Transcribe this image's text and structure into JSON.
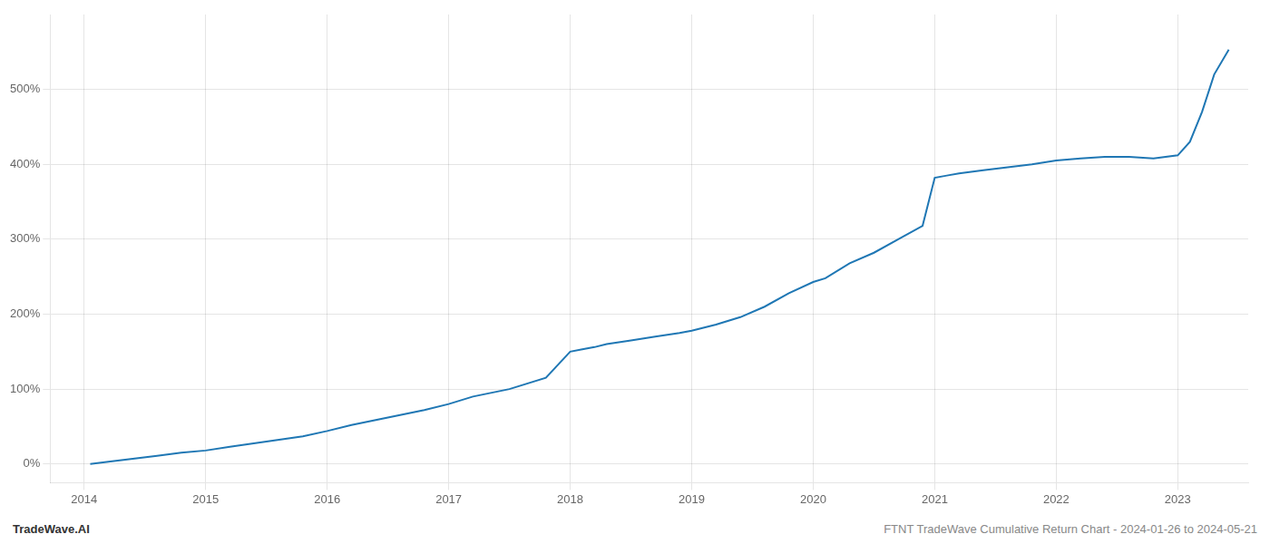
{
  "chart_data": {
    "type": "line",
    "x": [
      2014.05,
      2014.2,
      2014.4,
      2014.6,
      2014.8,
      2015.0,
      2015.2,
      2015.5,
      2015.8,
      2016.0,
      2016.2,
      2016.5,
      2016.8,
      2017.0,
      2017.2,
      2017.5,
      2017.8,
      2018.0,
      2018.1,
      2018.2,
      2018.3,
      2018.5,
      2018.7,
      2018.9,
      2019.0,
      2019.2,
      2019.4,
      2019.6,
      2019.8,
      2020.0,
      2020.1,
      2020.3,
      2020.5,
      2020.7,
      2020.9,
      2021.0,
      2021.1,
      2021.2,
      2021.4,
      2021.6,
      2021.8,
      2022.0,
      2022.2,
      2022.4,
      2022.6,
      2022.8,
      2023.0,
      2023.1,
      2023.2,
      2023.3,
      2023.42
    ],
    "values": [
      0,
      3,
      7,
      11,
      15,
      18,
      23,
      30,
      37,
      44,
      52,
      62,
      72,
      80,
      90,
      100,
      115,
      150,
      153,
      156,
      160,
      165,
      170,
      175,
      178,
      186,
      196,
      210,
      228,
      243,
      248,
      268,
      282,
      300,
      318,
      382,
      385,
      388,
      392,
      396,
      400,
      405,
      408,
      410,
      410,
      408,
      412,
      430,
      470,
      520,
      553
    ],
    "color": "#1f77b4",
    "xlim": [
      2013.72,
      2023.58
    ],
    "xticks": [
      2014,
      2015,
      2016,
      2017,
      2018,
      2019,
      2020,
      2021,
      2022,
      2023
    ],
    "ylim": [
      -25,
      600
    ],
    "yticks": [
      {
        "value": 0,
        "label": "0%"
      },
      {
        "value": 100,
        "label": "100%"
      },
      {
        "value": 200,
        "label": "200%"
      },
      {
        "value": 300,
        "label": "300%"
      },
      {
        "value": 400,
        "label": "400%"
      },
      {
        "value": 500,
        "label": "500%"
      }
    ],
    "grid": true,
    "annotations": [
      {
        "text": "TradeWave.AI",
        "color": "#333333"
      },
      {
        "text": "FTNT TradeWave Cumulative Return Chart - 2024-01-26 to 2024-05-21",
        "color": "#888888"
      }
    ]
  }
}
